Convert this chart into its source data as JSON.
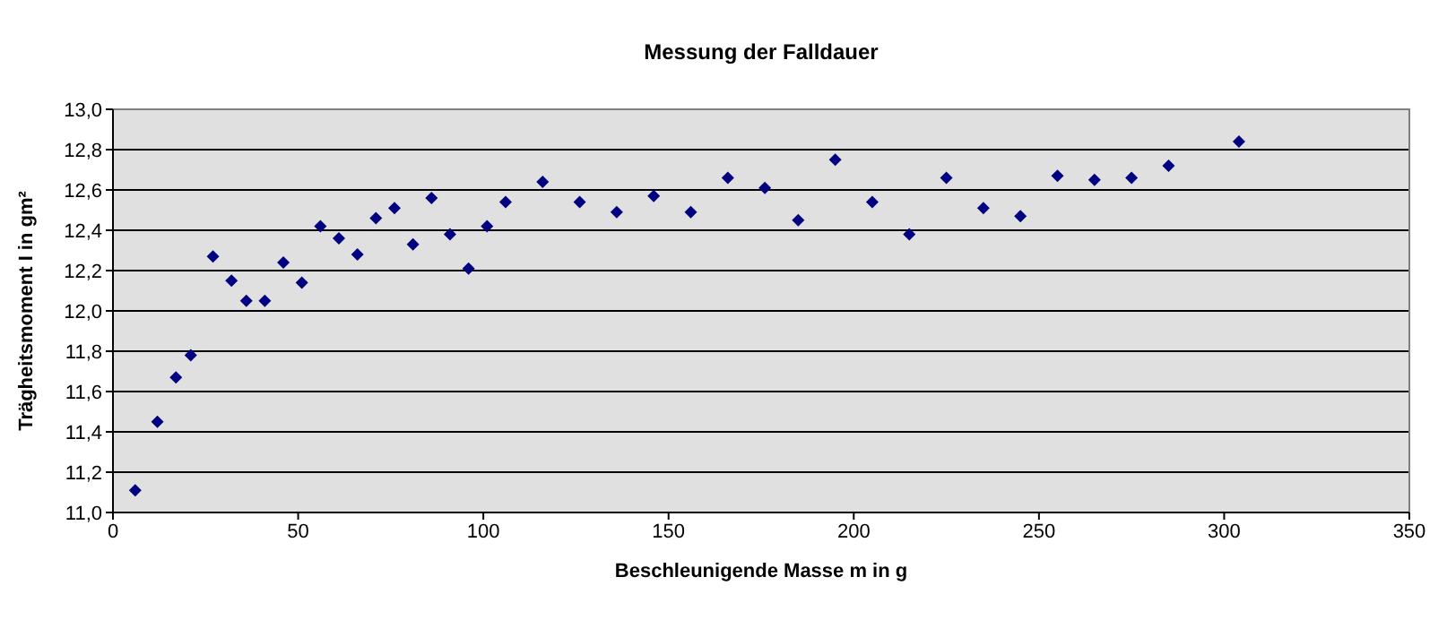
{
  "chart_data": {
    "type": "scatter",
    "title": "Messung der Falldauer",
    "xlabel": "Beschleunigende Masse m in g",
    "ylabel": "Trägheitsmoment I in gm²",
    "x": [
      6,
      12,
      17,
      21,
      27,
      32,
      36,
      41,
      46,
      51,
      56,
      61,
      66,
      71,
      76,
      81,
      86,
      91,
      96,
      101,
      106,
      116,
      126,
      136,
      146,
      156,
      166,
      176,
      185,
      195,
      205,
      215,
      225,
      235,
      245,
      255,
      265,
      275,
      285,
      304
    ],
    "series": [
      {
        "color": "#000080",
        "values": [
          11.11,
          11.45,
          11.67,
          11.78,
          12.27,
          12.15,
          12.05,
          12.05,
          12.24,
          12.14,
          12.42,
          12.36,
          12.28,
          12.46,
          12.51,
          12.33,
          12.56,
          12.38,
          12.21,
          12.42,
          12.54,
          12.64,
          12.54,
          12.49,
          12.57,
          12.49,
          12.66,
          12.61,
          12.45,
          12.75,
          12.54,
          12.38,
          12.66,
          12.51,
          12.47,
          12.67,
          12.65,
          12.66,
          12.72,
          12.84
        ]
      }
    ],
    "xlim": [
      0,
      350
    ],
    "xticks": [
      0,
      50,
      100,
      150,
      200,
      250,
      300,
      350
    ],
    "ylim": [
      11,
      13
    ],
    "yticks": [
      {
        "value": 11,
        "label": "11,0"
      },
      {
        "value": 11.2,
        "label": "11,2"
      },
      {
        "value": 11.4,
        "label": "11,4"
      },
      {
        "value": 11.6,
        "label": "11,6"
      },
      {
        "value": 11.8,
        "label": "11,8"
      },
      {
        "value": 12,
        "label": "12,0"
      },
      {
        "value": 12.2,
        "label": "12,2"
      },
      {
        "value": 12.4,
        "label": "12,4"
      },
      {
        "value": 12.6,
        "label": "12,6"
      },
      {
        "value": 12.8,
        "label": "12,8"
      },
      {
        "value": 13,
        "label": "13,0"
      }
    ],
    "grid": "y",
    "legend": false,
    "marker": "diamond"
  }
}
